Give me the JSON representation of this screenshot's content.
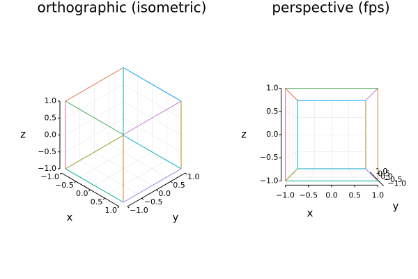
{
  "chart_data": [
    {
      "type": "line3d",
      "projection": "orthographic",
      "title": "orthographic (isometric)",
      "xlabel": "x",
      "ylabel": "y",
      "zlabel": "z",
      "grid": true,
      "xlim": [
        -1,
        1
      ],
      "ylim": [
        -1,
        1
      ],
      "zlim": [
        -1,
        1
      ],
      "xticks": [
        {
          "value": -1,
          "label": "−1.0"
        },
        {
          "value": -0.5,
          "label": "−0.5"
        },
        {
          "value": 0,
          "label": "0.0"
        },
        0.5,
        {
          "value": 1,
          "label": "1.0"
        }
      ],
      "yticks": [
        {
          "value": -1,
          "label": "−1.0"
        },
        {
          "value": -0.5,
          "label": "−0.5"
        },
        {
          "value": 0,
          "label": "0.0"
        },
        0.5,
        {
          "value": 1,
          "label": "1.0"
        }
      ],
      "zticks": [
        {
          "value": -1,
          "label": "−1.0"
        },
        {
          "value": -0.5,
          "label": "−0.5"
        },
        {
          "value": 0,
          "label": "0.0"
        },
        0.5,
        {
          "value": 1,
          "label": "1.0"
        }
      ],
      "series": [
        {
          "color": "#009AFA",
          "x": [
            -1,
            1
          ],
          "y": [
            1,
            1
          ],
          "z": [
            1,
            1
          ]
        },
        {
          "color": "#E36F47",
          "x": [
            -1,
            -1
          ],
          "y": [
            1,
            -1
          ],
          "z": [
            1,
            1
          ]
        },
        {
          "color": "#3EA44E",
          "x": [
            1,
            -1
          ],
          "y": [
            -1,
            -1
          ],
          "z": [
            1,
            1
          ]
        },
        {
          "color": "#C371D2",
          "x": [
            1,
            1
          ],
          "y": [
            -1,
            1
          ],
          "z": [
            1,
            1
          ]
        },
        {
          "color": "#AC8E18",
          "x": [
            1,
            1
          ],
          "y": [
            1,
            1
          ],
          "z": [
            1,
            -1
          ]
        },
        {
          "color": "#00AAAE",
          "x": [
            -1,
            -1
          ],
          "y": [
            1,
            1
          ],
          "z": [
            -1,
            1
          ]
        },
        {
          "color": "#ED5E93",
          "x": [
            -1,
            -1
          ],
          "y": [
            -1,
            -1
          ],
          "z": [
            1,
            -1
          ]
        },
        {
          "color": "#C68225",
          "x": [
            1,
            1
          ],
          "y": [
            -1,
            -1
          ],
          "z": [
            1,
            -1
          ]
        },
        {
          "color": "#00A98D",
          "x": [
            -1,
            1
          ],
          "y": [
            -1,
            -1
          ],
          "z": [
            -1,
            -1
          ]
        },
        {
          "color": "#8E971D",
          "x": [
            -1,
            -1
          ],
          "y": [
            1,
            -1
          ],
          "z": [
            -1,
            -1
          ]
        },
        {
          "color": "#00A8CB",
          "x": [
            -1,
            1
          ],
          "y": [
            1,
            1
          ],
          "z": [
            -1,
            -1
          ]
        },
        {
          "color": "#9B7FE9",
          "x": [
            1,
            1
          ],
          "y": [
            -1,
            1
          ],
          "z": [
            -1,
            -1
          ]
        }
      ]
    },
    {
      "type": "line3d",
      "projection": "perspective",
      "title": "perspective (fps)",
      "xlabel": "x",
      "ylabel": "y",
      "zlabel": "z",
      "grid": true,
      "xlim": [
        -1,
        1
      ],
      "ylim": [
        -1,
        1
      ],
      "zlim": [
        -1,
        1
      ],
      "xticks": [
        {
          "value": -1,
          "label": "−1.0"
        },
        {
          "value": -0.5,
          "label": "−0.5"
        },
        {
          "value": 0,
          "label": "0.0"
        },
        0.5,
        {
          "value": 1,
          "label": "1.0"
        }
      ],
      "yticks": [
        {
          "value": -1,
          "label": "−1.0"
        },
        {
          "value": -0.5,
          "label": "−0.5"
        },
        {
          "value": 0,
          "label": "0.0"
        },
        0.5,
        {
          "value": 1,
          "label": "1.0"
        }
      ],
      "zticks": [
        {
          "value": -1,
          "label": "−1.0"
        },
        {
          "value": -0.5,
          "label": "−0.5"
        },
        {
          "value": 0,
          "label": "0.0"
        },
        0.5,
        {
          "value": 1,
          "label": "1.0"
        }
      ],
      "series": [
        {
          "color": "#009AFA",
          "x": [
            -1,
            1
          ],
          "y": [
            1,
            1
          ],
          "z": [
            1,
            1
          ]
        },
        {
          "color": "#E36F47",
          "x": [
            -1,
            -1
          ],
          "y": [
            1,
            -1
          ],
          "z": [
            1,
            1
          ]
        },
        {
          "color": "#3EA44E",
          "x": [
            1,
            -1
          ],
          "y": [
            -1,
            -1
          ],
          "z": [
            1,
            1
          ]
        },
        {
          "color": "#C371D2",
          "x": [
            1,
            1
          ],
          "y": [
            -1,
            1
          ],
          "z": [
            1,
            1
          ]
        },
        {
          "color": "#AC8E18",
          "x": [
            1,
            1
          ],
          "y": [
            1,
            1
          ],
          "z": [
            1,
            -1
          ]
        },
        {
          "color": "#00AAAE",
          "x": [
            -1,
            -1
          ],
          "y": [
            1,
            1
          ],
          "z": [
            -1,
            1
          ]
        },
        {
          "color": "#ED5E93",
          "x": [
            -1,
            -1
          ],
          "y": [
            -1,
            -1
          ],
          "z": [
            1,
            -1
          ]
        },
        {
          "color": "#C68225",
          "x": [
            1,
            1
          ],
          "y": [
            -1,
            -1
          ],
          "z": [
            1,
            -1
          ]
        },
        {
          "color": "#00A98D",
          "x": [
            -1,
            1
          ],
          "y": [
            -1,
            -1
          ],
          "z": [
            -1,
            -1
          ]
        },
        {
          "color": "#8E971D",
          "x": [
            -1,
            -1
          ],
          "y": [
            1,
            -1
          ],
          "z": [
            -1,
            -1
          ]
        },
        {
          "color": "#00A8CB",
          "x": [
            -1,
            1
          ],
          "y": [
            1,
            1
          ],
          "z": [
            -1,
            -1
          ]
        },
        {
          "color": "#9B7FE9",
          "x": [
            1,
            1
          ],
          "y": [
            -1,
            1
          ],
          "z": [
            -1,
            -1
          ]
        }
      ]
    }
  ]
}
